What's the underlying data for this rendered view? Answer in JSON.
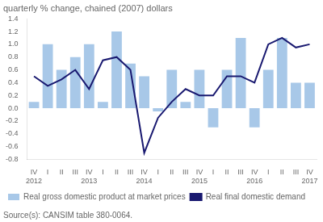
{
  "chart_data": {
    "type": "bar",
    "title": "quarterly % change, chained (2007) dollars",
    "categories": [
      "IV",
      "I",
      "II",
      "III",
      "IV",
      "I",
      "II",
      "III",
      "IV",
      "I",
      "II",
      "III",
      "IV",
      "I",
      "II",
      "III",
      "IV",
      "I",
      "II",
      "III",
      "IV"
    ],
    "series": [
      {
        "name": "Real gross domestic product at market prices",
        "type": "bar",
        "color": "#a8c8e8",
        "values": [
          0.1,
          1.0,
          0.6,
          0.8,
          1.0,
          0.1,
          1.2,
          0.7,
          0.5,
          -0.05,
          0.6,
          0.1,
          0.6,
          -0.3,
          0.6,
          1.1,
          -0.3,
          0.6,
          1.1,
          0.4,
          0.4
        ]
      },
      {
        "name": "Real final domestic demand",
        "type": "line",
        "color": "#191970",
        "values": [
          0.5,
          0.35,
          0.45,
          0.6,
          0.3,
          0.75,
          0.8,
          0.6,
          -0.7,
          -0.15,
          0.1,
          0.3,
          0.2,
          0.2,
          0.5,
          0.5,
          0.4,
          1.0,
          1.1,
          0.95,
          1.0
        ]
      }
    ],
    "ylim": [
      -0.8,
      1.4
    ],
    "yticks": [
      -0.8,
      -0.6,
      -0.4,
      -0.2,
      {
        "value": 0.0,
        "label": "0.0"
      },
      0.2,
      0.4,
      0.6,
      0.8,
      {
        "value": 1.0,
        "label": "1.0"
      },
      1.2,
      1.4
    ],
    "annotations": [
      {
        "text": "2012",
        "x": 0
      },
      {
        "text": "2013",
        "x": 4
      },
      {
        "text": "2014",
        "x": 8
      },
      {
        "text": "2015",
        "x": 12
      },
      {
        "text": "2016",
        "x": 16
      },
      {
        "text": "2017",
        "x": 20
      },
      {
        "text": "Source(s): CANSIM table 380-0064."
      }
    ],
    "grid": false,
    "legend": "bottom"
  }
}
